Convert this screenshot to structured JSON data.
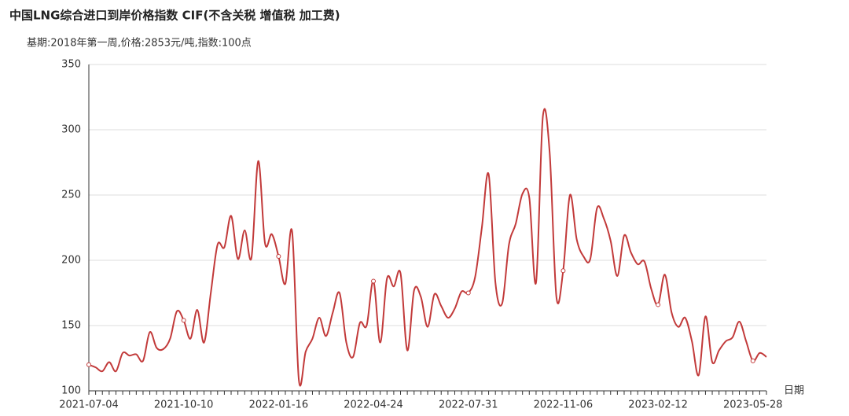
{
  "chart_data": {
    "type": "line",
    "title": "中国LNG综合进口到岸价格指数  CIF(不含关税  增值税 加工费)",
    "subtitle": "基期:2018年第一周,价格:2853元/吨,指数:100点",
    "x_label": "日期",
    "categories": [
      "2021-07-04",
      null,
      null,
      null,
      null,
      null,
      null,
      null,
      null,
      null,
      null,
      null,
      null,
      null,
      "2021-10-10",
      null,
      null,
      null,
      null,
      null,
      null,
      null,
      null,
      null,
      null,
      null,
      null,
      null,
      "2022-01-16",
      null,
      null,
      null,
      null,
      null,
      null,
      null,
      null,
      null,
      null,
      null,
      null,
      null,
      "2022-04-24",
      null,
      null,
      null,
      null,
      null,
      null,
      null,
      null,
      null,
      null,
      null,
      null,
      null,
      "2022-07-31",
      null,
      null,
      null,
      null,
      null,
      null,
      null,
      null,
      null,
      null,
      null,
      null,
      null,
      "2022-11-06",
      null,
      null,
      null,
      null,
      null,
      null,
      null,
      null,
      null,
      null,
      null,
      null,
      null,
      "2023-02-12",
      null,
      null,
      null,
      null,
      null,
      null,
      null,
      null,
      null,
      null,
      null,
      null,
      null,
      "2023-05-28",
      null,
      null
    ],
    "series": [
      {
        "color": "#c23a3a",
        "values": [
          120,
          118,
          115,
          122,
          115,
          129,
          127,
          128,
          123,
          145,
          133,
          132,
          140,
          161,
          154,
          140,
          162,
          137,
          175,
          212,
          210,
          234,
          201,
          223,
          202,
          276,
          213,
          220,
          203,
          182,
          222,
          108,
          130,
          140,
          156,
          142,
          160,
          175,
          137,
          126,
          152,
          150,
          184,
          137,
          186,
          180,
          190,
          131,
          177,
          172,
          149,
          174,
          165,
          156,
          163,
          176,
          175,
          187,
          225,
          266,
          183,
          167,
          212,
          228,
          251,
          248,
          183,
          310,
          283,
          172,
          192,
          250,
          216,
          203,
          201,
          240,
          232,
          215,
          188,
          219,
          206,
          197,
          199,
          178,
          166,
          189,
          160,
          149,
          156,
          138,
          112,
          157,
          122,
          131,
          138,
          141,
          153,
          138,
          123,
          129,
          126
        ]
      }
    ],
    "ylim": [
      100,
      350
    ],
    "yticks": [
      100,
      150,
      200,
      250,
      300,
      350
    ],
    "grid": true
  }
}
